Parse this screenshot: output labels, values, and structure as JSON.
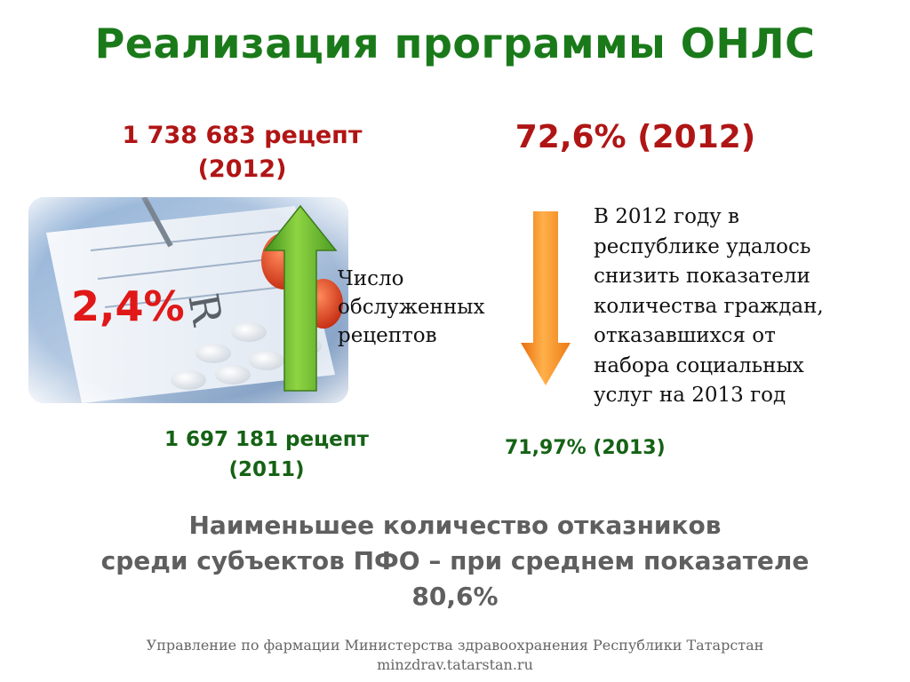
{
  "slide": {
    "title": "Реализация программы ОНЛС",
    "left": {
      "prescriptions_2012_line1": "1 738 683 рецепт",
      "prescriptions_2012_line2": "(2012)",
      "growth_percent": "2,4%",
      "served_label_line1": "Число",
      "served_label_line2": "обслуженных",
      "served_label_line3": "рецептов",
      "prescriptions_2011_line1": "1 697 181 рецепт",
      "prescriptions_2011_line2": "(2011)"
    },
    "right": {
      "percent_2012": "72,6% (2012)",
      "description_lines": [
        "В 2012 году в",
        "республике удалось",
        "снизить показатели",
        "количества граждан,",
        "отказавшихся от",
        "набора социальных",
        "услуг на 2013 год"
      ],
      "percent_2013": "71,97% (2013)"
    },
    "summary_lines": [
      "Наименьшее количество отказников",
      "среди субъектов ПФО – при среднем показателе",
      "80,6%"
    ],
    "footer_lines": [
      "Управление по фармации Министерства здравоохранения Республики Татарстан",
      "minzdrav.tatarstan.ru"
    ],
    "colors": {
      "title": "#1a7a1a",
      "red_figure": "#b01515",
      "green_figure": "#156215",
      "up_arrow": "#6fb82c",
      "down_arrow": "#f28c1c"
    }
  }
}
